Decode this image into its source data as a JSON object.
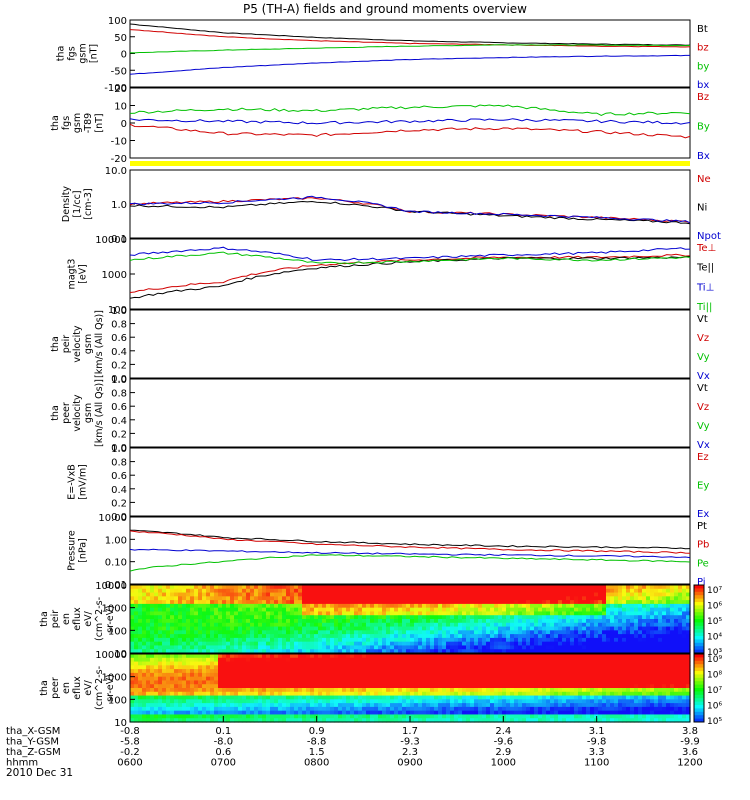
{
  "title": "P5 (TH-A) fields and ground moments overview",
  "date": "2010 Dec 31",
  "panels": [
    {
      "id": "fgs",
      "ylabel": [
        "tha",
        "fgs",
        "gsm",
        "[nT]"
      ],
      "ticks": [
        "100",
        "50",
        "0",
        "-50",
        "-100"
      ],
      "legend": [
        {
          "text": "Bt",
          "color": "#000000"
        },
        {
          "text": "bz",
          "color": "#d00000"
        },
        {
          "text": "by",
          "color": "#00c000"
        },
        {
          "text": "bx",
          "color": "#0000d0"
        }
      ]
    },
    {
      "id": "fgs-dbz",
      "ylabel": [
        "tha",
        "fgs",
        "gsm",
        "-T89",
        "[nT]"
      ],
      "ticks": [
        "20",
        "10",
        "0",
        "-10",
        "-20"
      ],
      "legend": [
        {
          "text": "Bz",
          "color": "#d00000"
        },
        {
          "text": "By",
          "color": "#00c000"
        },
        {
          "text": "Bx",
          "color": "#0000d0"
        }
      ]
    },
    {
      "id": "density",
      "ylabel": [
        "Density",
        "[1/cc]",
        "[cm-3]"
      ],
      "ticks": [
        "10.0",
        "1.0",
        "0.1"
      ],
      "legend": [
        {
          "text": "Ne",
          "color": "#d00000"
        },
        {
          "text": "Ni",
          "color": "#000000"
        },
        {
          "text": "Npot",
          "color": "#0000d0"
        }
      ]
    },
    {
      "id": "temperature",
      "ylabel": [
        "magt3",
        "[eV]"
      ],
      "ticks": [
        "10000",
        "1000",
        "100"
      ],
      "legend": [
        {
          "text": "Te⊥",
          "color": "#d00000"
        },
        {
          "text": "Te||",
          "color": "#000000"
        },
        {
          "text": "Ti⊥",
          "color": "#0000d0"
        },
        {
          "text": "Ti||",
          "color": "#00c000"
        }
      ]
    },
    {
      "id": "peir-velocity",
      "ylabel": [
        "tha",
        "peir",
        "velocity",
        "gsm",
        "[km/s (All Qs)]"
      ],
      "ticks": [
        "1.0",
        "0.8",
        "0.6",
        "0.4",
        "0.2",
        "0.0"
      ],
      "legend": [
        {
          "text": "Vt",
          "color": "#000000"
        },
        {
          "text": "Vz",
          "color": "#d00000"
        },
        {
          "text": "Vy",
          "color": "#00c000"
        },
        {
          "text": "Vx",
          "color": "#0000d0"
        }
      ]
    },
    {
      "id": "peer-velocity",
      "ylabel": [
        "tha",
        "peer",
        "velocity",
        "gsm",
        "[km/s (All Qs)]"
      ],
      "ticks": [
        "1.0",
        "0.8",
        "0.6",
        "0.4",
        "0.2",
        "0.0"
      ],
      "legend": [
        {
          "text": "Vt",
          "color": "#000000"
        },
        {
          "text": "Vz",
          "color": "#d00000"
        },
        {
          "text": "Vy",
          "color": "#00c000"
        },
        {
          "text": "Vx",
          "color": "#0000d0"
        }
      ]
    },
    {
      "id": "efield",
      "ylabel": [
        "E=-VxB",
        "[mV/m]"
      ],
      "ticks": [
        "1.0",
        "0.8",
        "0.6",
        "0.4",
        "0.2",
        "0.0"
      ],
      "legend": [
        {
          "text": "Ez",
          "color": "#d00000"
        },
        {
          "text": "Ey",
          "color": "#00c000"
        },
        {
          "text": "Ex",
          "color": "#0000d0"
        }
      ]
    },
    {
      "id": "pressure",
      "ylabel": [
        "Pressure",
        "[nPa]"
      ],
      "ticks": [
        "10.00",
        "1.00",
        "0.10",
        "0.01"
      ],
      "legend": [
        {
          "text": "Pt",
          "color": "#000000"
        },
        {
          "text": "Pb",
          "color": "#d00000"
        },
        {
          "text": "Pe",
          "color": "#00c000"
        },
        {
          "text": "Pi",
          "color": "#0000d0"
        }
      ]
    },
    {
      "id": "peir-eflux",
      "ylabel": [
        "tha",
        "peir",
        "en",
        "eflux",
        "eV/",
        "(cm^2-s-",
        "sr-eV)"
      ],
      "ticks": [
        "10000",
        "1000",
        "100",
        "10"
      ],
      "colorbar": [
        "10⁷",
        "10⁶",
        "10⁵",
        "10⁴",
        "10³"
      ]
    },
    {
      "id": "peer-eflux",
      "ylabel": [
        "tha",
        "peer",
        "en",
        "eflux",
        "eV/",
        "(cm^2-s-",
        "sr-eV)"
      ],
      "ticks": [
        "10000",
        "1000",
        "100",
        "10"
      ],
      "colorbar": [
        "10⁹",
        "10⁸",
        "10⁷",
        "10⁶",
        "10⁵"
      ]
    }
  ],
  "xaxis": {
    "rows": [
      {
        "label": "tha_X-GSM",
        "values": [
          "-0.8",
          "0.1",
          "0.9",
          "1.7",
          "2.4",
          "3.1",
          "3.8"
        ]
      },
      {
        "label": "tha_Y-GSM",
        "values": [
          "-5.8",
          "-8.0",
          "-8.8",
          "-9.3",
          "-9.6",
          "-9.8",
          "-9.9"
        ]
      },
      {
        "label": "tha_Z-GSM",
        "values": [
          "-0.2",
          "0.6",
          "1.5",
          "2.3",
          "2.9",
          "3.3",
          "3.6"
        ]
      },
      {
        "label": "hhmm",
        "values": [
          "0600",
          "0700",
          "0800",
          "0900",
          "1000",
          "1100",
          "1200"
        ]
      }
    ]
  },
  "chart_data": {
    "type": "line",
    "x": [
      "0600",
      "0700",
      "0800",
      "0900",
      "1000",
      "1100",
      "1200"
    ],
    "series": [
      {
        "name": "Bt",
        "panel": "fgs",
        "values": [
          88,
          62,
          48,
          38,
          32,
          28,
          25
        ]
      },
      {
        "name": "bz",
        "panel": "fgs",
        "values": [
          72,
          50,
          38,
          30,
          26,
          22,
          20
        ]
      },
      {
        "name": "by",
        "panel": "fgs",
        "values": [
          2,
          10,
          16,
          22,
          26,
          25,
          24
        ]
      },
      {
        "name": "bx",
        "panel": "fgs",
        "values": [
          -62,
          -42,
          -28,
          -18,
          -12,
          -8,
          -6
        ]
      },
      {
        "name": "Bz",
        "panel": "fgs-dbz",
        "values": [
          -1,
          -6,
          -7,
          -4,
          -3,
          -5,
          -8
        ]
      },
      {
        "name": "By",
        "panel": "fgs-dbz",
        "values": [
          6,
          8,
          7,
          9,
          10,
          5,
          6
        ]
      },
      {
        "name": "Bx",
        "panel": "fgs-dbz",
        "values": [
          2,
          1,
          0,
          1,
          2,
          1,
          0
        ]
      },
      {
        "name": "Ne",
        "panel": "density",
        "values": [
          1.0,
          1.2,
          1.5,
          0.6,
          0.5,
          0.4,
          0.3
        ]
      },
      {
        "name": "Ni",
        "panel": "density",
        "values": [
          0.9,
          0.8,
          1.2,
          0.6,
          0.45,
          0.35,
          0.28
        ]
      },
      {
        "name": "Npot",
        "panel": "density",
        "values": [
          1.0,
          1.1,
          1.6,
          0.6,
          0.5,
          0.4,
          0.3
        ]
      },
      {
        "name": "Te⊥",
        "panel": "temperature",
        "values": [
          300,
          600,
          1800,
          2500,
          3000,
          3000,
          3500
        ]
      },
      {
        "name": "Te||",
        "panel": "temperature",
        "values": [
          200,
          450,
          1500,
          2200,
          2800,
          2800,
          3000
        ]
      },
      {
        "name": "Ti⊥",
        "panel": "temperature",
        "values": [
          3500,
          5500,
          2500,
          2800,
          3500,
          4000,
          5500
        ]
      },
      {
        "name": "Ti||",
        "panel": "temperature",
        "values": [
          2500,
          4000,
          2000,
          2300,
          2800,
          2500,
          3000
        ]
      },
      {
        "name": "Pt",
        "panel": "pressure",
        "values": [
          2.5,
          1.2,
          0.8,
          0.6,
          0.5,
          0.45,
          0.4
        ]
      },
      {
        "name": "Pb",
        "panel": "pressure",
        "values": [
          2.3,
          1.0,
          0.6,
          0.45,
          0.35,
          0.3,
          0.25
        ]
      },
      {
        "name": "Pe",
        "panel": "pressure",
        "values": [
          0.04,
          0.1,
          0.2,
          0.17,
          0.14,
          0.12,
          0.1
        ]
      },
      {
        "name": "Pi",
        "panel": "pressure",
        "values": [
          0.35,
          0.3,
          0.25,
          0.22,
          0.2,
          0.18,
          0.16
        ]
      }
    ]
  }
}
